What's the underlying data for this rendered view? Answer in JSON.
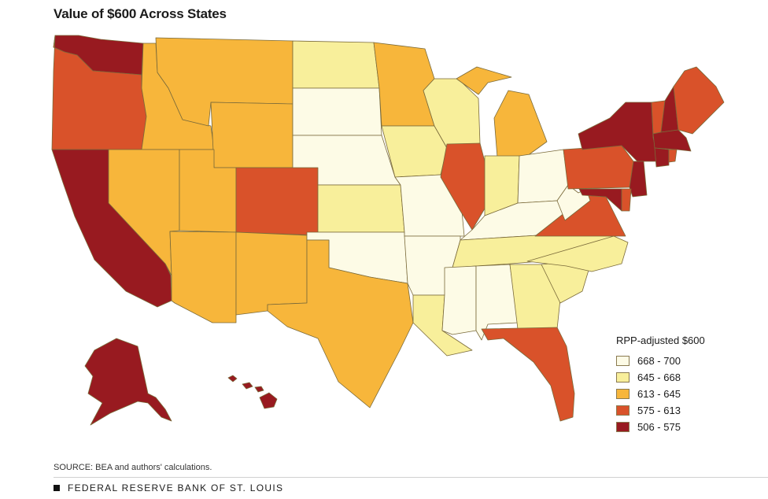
{
  "title": "Value of $600 Across States",
  "legend": {
    "title": "RPP-adjusted $600",
    "items": [
      {
        "label": "668 - 700",
        "color": "#fdfbe6"
      },
      {
        "label": "645 - 668",
        "color": "#f8ef9b"
      },
      {
        "label": "613 - 645",
        "color": "#f7b63b"
      },
      {
        "label": "575 - 613",
        "color": "#d9522a"
      },
      {
        "label": "506 - 575",
        "color": "#981a20"
      }
    ]
  },
  "source": "SOURCE: BEA and authors' calculations.",
  "footer": "FEDERAL RESERVE BANK OF ST. LOUIS",
  "states": [
    {
      "id": "WA",
      "bin": 4
    },
    {
      "id": "OR",
      "bin": 3
    },
    {
      "id": "CA",
      "bin": 4
    },
    {
      "id": "ID",
      "bin": 2
    },
    {
      "id": "NV",
      "bin": 2
    },
    {
      "id": "MT",
      "bin": 2
    },
    {
      "id": "WY",
      "bin": 2
    },
    {
      "id": "UT",
      "bin": 2
    },
    {
      "id": "AZ",
      "bin": 2
    },
    {
      "id": "CO",
      "bin": 3
    },
    {
      "id": "NM",
      "bin": 2
    },
    {
      "id": "ND",
      "bin": 1
    },
    {
      "id": "SD",
      "bin": 0
    },
    {
      "id": "NE",
      "bin": 0
    },
    {
      "id": "KS",
      "bin": 1
    },
    {
      "id": "OK",
      "bin": 0
    },
    {
      "id": "TX",
      "bin": 2
    },
    {
      "id": "MN",
      "bin": 2
    },
    {
      "id": "IA",
      "bin": 1
    },
    {
      "id": "MO",
      "bin": 0
    },
    {
      "id": "AR",
      "bin": 0
    },
    {
      "id": "LA",
      "bin": 1
    },
    {
      "id": "WI",
      "bin": 1
    },
    {
      "id": "IL",
      "bin": 3
    },
    {
      "id": "MI",
      "bin": 2
    },
    {
      "id": "IN",
      "bin": 1
    },
    {
      "id": "OH",
      "bin": 0
    },
    {
      "id": "KY",
      "bin": 0
    },
    {
      "id": "TN",
      "bin": 1
    },
    {
      "id": "MS",
      "bin": 0
    },
    {
      "id": "AL",
      "bin": 0
    },
    {
      "id": "GA",
      "bin": 1
    },
    {
      "id": "FL",
      "bin": 3
    },
    {
      "id": "SC",
      "bin": 1
    },
    {
      "id": "NC",
      "bin": 1
    },
    {
      "id": "VA",
      "bin": 3
    },
    {
      "id": "WV",
      "bin": 0
    },
    {
      "id": "PA",
      "bin": 3
    },
    {
      "id": "NY",
      "bin": 4
    },
    {
      "id": "VT",
      "bin": 3
    },
    {
      "id": "NH",
      "bin": 4
    },
    {
      "id": "ME",
      "bin": 3
    },
    {
      "id": "MA",
      "bin": 4
    },
    {
      "id": "CT",
      "bin": 4
    },
    {
      "id": "RI",
      "bin": 3
    },
    {
      "id": "NJ",
      "bin": 4
    },
    {
      "id": "DE",
      "bin": 3
    },
    {
      "id": "MD",
      "bin": 4
    },
    {
      "id": "AK",
      "bin": 4
    },
    {
      "id": "HI",
      "bin": 4
    }
  ]
}
